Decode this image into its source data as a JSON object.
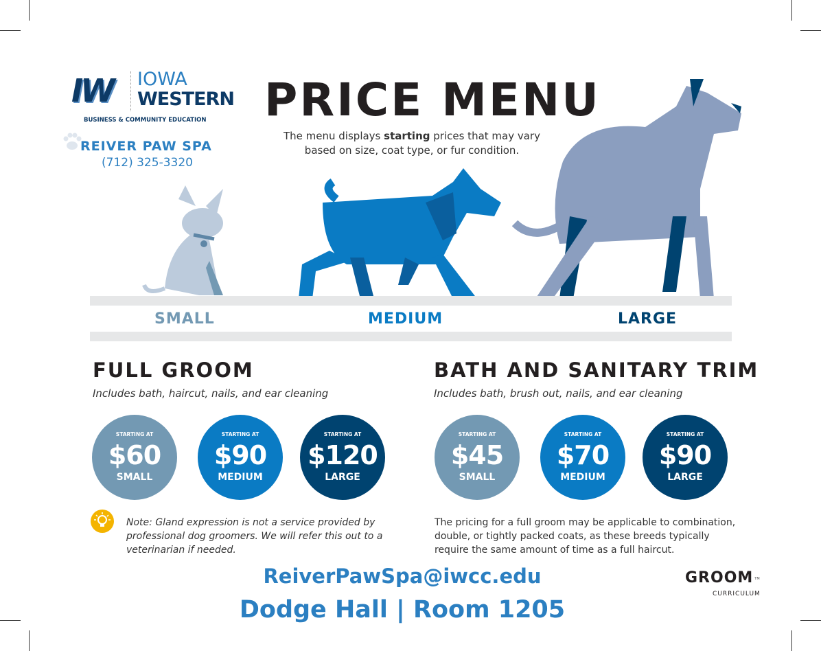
{
  "logo": {
    "mark": "IW",
    "line1": "IOWA",
    "line2": "WESTERN",
    "tagline": "BUSINESS & COMMUNITY EDUCATION"
  },
  "spa": {
    "name": "REIVER PAW SPA",
    "phone": "(712) 325-3320"
  },
  "header": {
    "title": "PRICE MENU",
    "subtitle_before": "The menu displays ",
    "subtitle_bold": "starting",
    "subtitle_after": " prices that may vary based on size, coat type, or fur condition."
  },
  "sizes": [
    {
      "label": "SMALL",
      "color": "#7399b3"
    },
    {
      "label": "MEDIUM",
      "color": "#0a7bc4"
    },
    {
      "label": "LARGE",
      "color": "#004370"
    }
  ],
  "full_groom": {
    "title": "FULL GROOM",
    "description": "Includes bath, haircut, nails, and ear cleaning",
    "prices": [
      {
        "starting": "STARTING AT",
        "price": "$60",
        "size": "SMALL"
      },
      {
        "starting": "STARTING AT",
        "price": "$90",
        "size": "MEDIUM"
      },
      {
        "starting": "STARTING AT",
        "price": "$120",
        "size": "LARGE"
      }
    ],
    "note": "Note: Gland expression is not a service provided by professional dog groomers. We will refer this out to a veterinarian if needed."
  },
  "bath": {
    "title": "BATH AND SANITARY TRIM",
    "description": "Includes bath, brush out, nails, and ear cleaning",
    "prices": [
      {
        "starting": "STARTING AT",
        "price": "$45",
        "size": "SMALL"
      },
      {
        "starting": "STARTING AT",
        "price": "$70",
        "size": "MEDIUM"
      },
      {
        "starting": "STARTING AT",
        "price": "$90",
        "size": "LARGE"
      }
    ],
    "note": "The pricing for a full groom may be applicable to combination, double, or tightly packed coats, as these breeds typically require the same amount of time as a full haircut."
  },
  "contact": {
    "email": "ReiverPawSpa@iwcc.edu",
    "location": "Dodge Hall | Room 1205"
  },
  "groom_logo": {
    "word": "GROOM",
    "sub": "CURRICULUM",
    "tm": "TM"
  }
}
